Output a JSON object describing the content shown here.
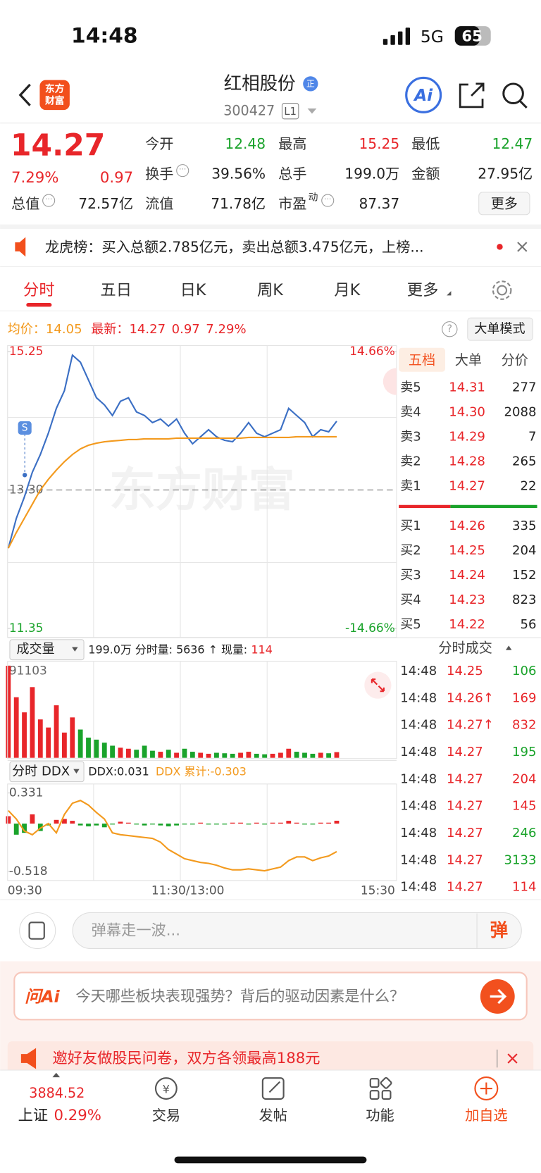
{
  "status_bar": {
    "time": "14:48",
    "network": "5G",
    "battery": "65"
  },
  "header": {
    "logo": [
      "东方",
      "财富"
    ],
    "name": "红相股份",
    "badge": "正",
    "code": "300427",
    "level": "L1",
    "ai": "Ai"
  },
  "quote": {
    "price": "14.27",
    "change_pct": "7.29%",
    "change": "0.97",
    "rows": [
      [
        {
          "label": "今开",
          "value": "12.48",
          "color": "#1aa32b"
        },
        {
          "label": "最高",
          "value": "15.25",
          "color": "#e8262a"
        },
        {
          "label": "最低",
          "value": "12.47",
          "color": "#1aa32b"
        }
      ],
      [
        {
          "label": "换手",
          "value": "39.56%",
          "icon": true
        },
        {
          "label": "总手",
          "value": "199.0万"
        },
        {
          "label": "金额",
          "value": "27.95亿"
        }
      ],
      [
        {
          "label": "总值",
          "value": "72.57亿",
          "icon": true
        },
        {
          "label": "流值",
          "value": "71.78亿"
        },
        {
          "label": "市盈",
          "sup": "动",
          "value": "87.37",
          "icon": true
        }
      ]
    ],
    "more": "更多"
  },
  "notice": {
    "text": "龙虎榜：买入总额2.785亿元，卖出总额3.475亿元，上榜..."
  },
  "tabs": {
    "items": [
      "分时",
      "五日",
      "日K",
      "周K",
      "月K",
      "更多"
    ],
    "active": 0
  },
  "info_line": {
    "avg_label": "均价：",
    "avg": "14.05",
    "last_label": "最新：",
    "last": "14.27",
    "change": "0.97",
    "change_pct": "7.29%",
    "mode": "大单模式"
  },
  "watermark": "东方财富",
  "chart_data": [
    {
      "type": "line",
      "ylim": [
        11.35,
        15.25
      ],
      "yticks": [
        11.35,
        {
          "value": 13.3,
          "label": "13.30"
        },
        15.25
      ],
      "ytick_colors": [
        "#1aa32b",
        "#666666",
        "#e8262a"
      ],
      "y2lim": [
        -14.66,
        14.66
      ],
      "y2ticks": [
        {
          "value": -14.66,
          "label": "-14.66%"
        },
        {
          "value": 14.66,
          "label": "14.66%"
        }
      ],
      "y2tick_colors": [
        "#1aa32b",
        "#e8262a"
      ],
      "series": [
        {
          "color": "#3b6fc4",
          "values": [
            12.48,
            12.9,
            13.2,
            13.55,
            13.8,
            14.1,
            14.45,
            14.7,
            15.2,
            15.1,
            14.85,
            14.6,
            14.5,
            14.35,
            14.55,
            14.6,
            14.4,
            14.35,
            14.25,
            14.3,
            14.2,
            14.3,
            14.1,
            13.95,
            14.05,
            14.15,
            14.05,
            14.0,
            13.98,
            14.1,
            14.25,
            14.1,
            14.05,
            14.1,
            14.15,
            14.45,
            14.35,
            14.25,
            14.05,
            14.15,
            14.12,
            14.27
          ]
        },
        {
          "color": "#f39a1e",
          "values": [
            12.48,
            12.7,
            12.9,
            13.1,
            13.3,
            13.45,
            13.58,
            13.7,
            13.8,
            13.88,
            13.93,
            13.96,
            13.98,
            13.99,
            14.0,
            14.01,
            14.01,
            14.02,
            14.02,
            14.02,
            14.02,
            14.03,
            14.03,
            14.03,
            14.03,
            14.03,
            14.03,
            14.03,
            14.03,
            14.03,
            14.04,
            14.04,
            14.04,
            14.04,
            14.04,
            14.04,
            14.05,
            14.05,
            14.05,
            14.05,
            14.05,
            14.05
          ]
        }
      ]
    },
    {
      "type": "bar",
      "selector": "成交量",
      "summary": "199.0万 分时量: 5636 ↑ 现量:",
      "current": "114",
      "ylim": [
        0,
        91103
      ],
      "yticks": [
        91103
      ],
      "values": [
        91103,
        60000,
        45000,
        70000,
        38000,
        30000,
        52000,
        25000,
        40000,
        28000,
        20000,
        18000,
        15000,
        12000,
        10000,
        9000,
        8000,
        12000,
        7000,
        6000,
        8000,
        5000,
        9000,
        6000,
        5000,
        4000,
        5000,
        4500,
        4000,
        5000,
        6000,
        4000,
        3500,
        4000,
        5000,
        9000,
        6000,
        5000,
        4000,
        5000,
        4500,
        5636
      ],
      "bar_colors": [
        "#e8262a",
        "#e8262a",
        "#e8262a",
        "#e8262a",
        "#e8262a",
        "#e8262a",
        "#e8262a",
        "#e8262a",
        "#e8262a",
        "#1aa32b",
        "#1aa32b",
        "#1aa32b",
        "#1aa32b",
        "#1aa32b",
        "#e8262a",
        "#e8262a",
        "#1aa32b",
        "#1aa32b",
        "#1aa32b",
        "#e8262a",
        "#1aa32b",
        "#e8262a",
        "#1aa32b",
        "#1aa32b",
        "#e8262a",
        "#e8262a",
        "#1aa32b",
        "#1aa32b",
        "#1aa32b",
        "#e8262a",
        "#e8262a",
        "#1aa32b",
        "#1aa32b",
        "#e8262a",
        "#e8262a",
        "#e8262a",
        "#1aa32b",
        "#1aa32b",
        "#1aa32b",
        "#e8262a",
        "#1aa32b",
        "#e8262a"
      ]
    },
    {
      "type": "ddx",
      "selector": "分时 DDX",
      "ddx_label": "DDX:0.031",
      "cum_label": "DDX 累计:-0.303",
      "ylim": [
        -0.518,
        0.331
      ],
      "yticks": [
        -0.518,
        0.331
      ],
      "x_labels": [
        "09:30",
        "11:30/13:00",
        "15:30"
      ],
      "series": [
        {
          "up_color": "#e8262a",
          "down_color": "#1aa32b",
          "values": [
            0.08,
            -0.12,
            -0.1,
            0.1,
            -0.08,
            -0.02,
            0.04,
            0.05,
            0.03,
            -0.02,
            -0.03,
            -0.02,
            -0.04,
            -0.01,
            0.02,
            0.01,
            -0.01,
            -0.02,
            -0.01,
            -0.02,
            -0.03,
            -0.02,
            -0.01,
            -0.01,
            0.01,
            -0.01,
            -0.01,
            -0.01,
            0.01,
            0.01,
            -0.01,
            0.01,
            -0.01,
            0.01,
            0.01,
            0.03,
            0.01,
            -0.01,
            -0.01,
            0.01,
            0.01,
            0.031
          ]
        },
        {
          "color": "#f39a1e",
          "values": [
            0.14,
            0.05,
            -0.08,
            -0.12,
            -0.05,
            0.0,
            -0.1,
            0.1,
            0.22,
            0.25,
            0.2,
            0.12,
            0.05,
            -0.1,
            -0.12,
            -0.13,
            -0.14,
            -0.15,
            -0.16,
            -0.2,
            -0.28,
            -0.33,
            -0.38,
            -0.4,
            -0.42,
            -0.43,
            -0.45,
            -0.48,
            -0.5,
            -0.5,
            -0.49,
            -0.5,
            -0.51,
            -0.49,
            -0.47,
            -0.4,
            -0.36,
            -0.36,
            -0.4,
            -0.37,
            -0.35,
            -0.303
          ]
        }
      ]
    }
  ],
  "order_book": {
    "tabs": [
      "五档",
      "大单",
      "分价"
    ],
    "active": 0,
    "price_color": "#e8262a",
    "asks": [
      {
        "label": "卖5",
        "price": "14.31",
        "volume": "277"
      },
      {
        "label": "卖4",
        "price": "14.30",
        "volume": "2088"
      },
      {
        "label": "卖3",
        "price": "14.29",
        "volume": "7"
      },
      {
        "label": "卖2",
        "price": "14.28",
        "volume": "265"
      },
      {
        "label": "卖1",
        "price": "14.27",
        "volume": "22"
      }
    ],
    "bids": [
      {
        "label": "买1",
        "price": "14.26",
        "volume": "335"
      },
      {
        "label": "买2",
        "price": "14.25",
        "volume": "204"
      },
      {
        "label": "买3",
        "price": "14.24",
        "volume": "152"
      },
      {
        "label": "买4",
        "price": "14.23",
        "volume": "823"
      },
      {
        "label": "买5",
        "price": "14.22",
        "volume": "56"
      }
    ]
  },
  "trades": {
    "title": "分时成交",
    "price_color": "#e8262a",
    "rows": [
      {
        "time": "14:48",
        "price": "14.25",
        "volume": "106",
        "color": "#1aa32b"
      },
      {
        "time": "14:48",
        "price": "14.26↑",
        "volume": "169",
        "color": "#e8262a"
      },
      {
        "time": "14:48",
        "price": "14.27↑",
        "volume": "832",
        "color": "#e8262a"
      },
      {
        "time": "14:48",
        "price": "14.27",
        "volume": "195",
        "color": "#1aa32b"
      },
      {
        "time": "14:48",
        "price": "14.27",
        "volume": "204",
        "color": "#e8262a"
      },
      {
        "time": "14:48",
        "price": "14.27",
        "volume": "145",
        "color": "#e8262a"
      },
      {
        "time": "14:48",
        "price": "14.27",
        "volume": "246",
        "color": "#1aa32b"
      },
      {
        "time": "14:48",
        "price": "14.27",
        "volume": "3133",
        "color": "#1aa32b"
      },
      {
        "time": "14:48",
        "price": "14.27",
        "volume": "114",
        "color": "#e8262a"
      }
    ]
  },
  "comment": {
    "placeholder": "弹幕走一波...",
    "button": "弹"
  },
  "ai_box": {
    "logo": "问Ai",
    "prompt": "今天哪些板块表现强势？背后的驱动因素是什么？"
  },
  "banner": {
    "text": "邀好友做股民问卷，双方各领最高188元"
  },
  "nav": {
    "index_value": "3884.52",
    "index_name": "上证",
    "index_change": "0.29%",
    "items": [
      "交易",
      "发帖",
      "功能",
      "加自选"
    ]
  }
}
